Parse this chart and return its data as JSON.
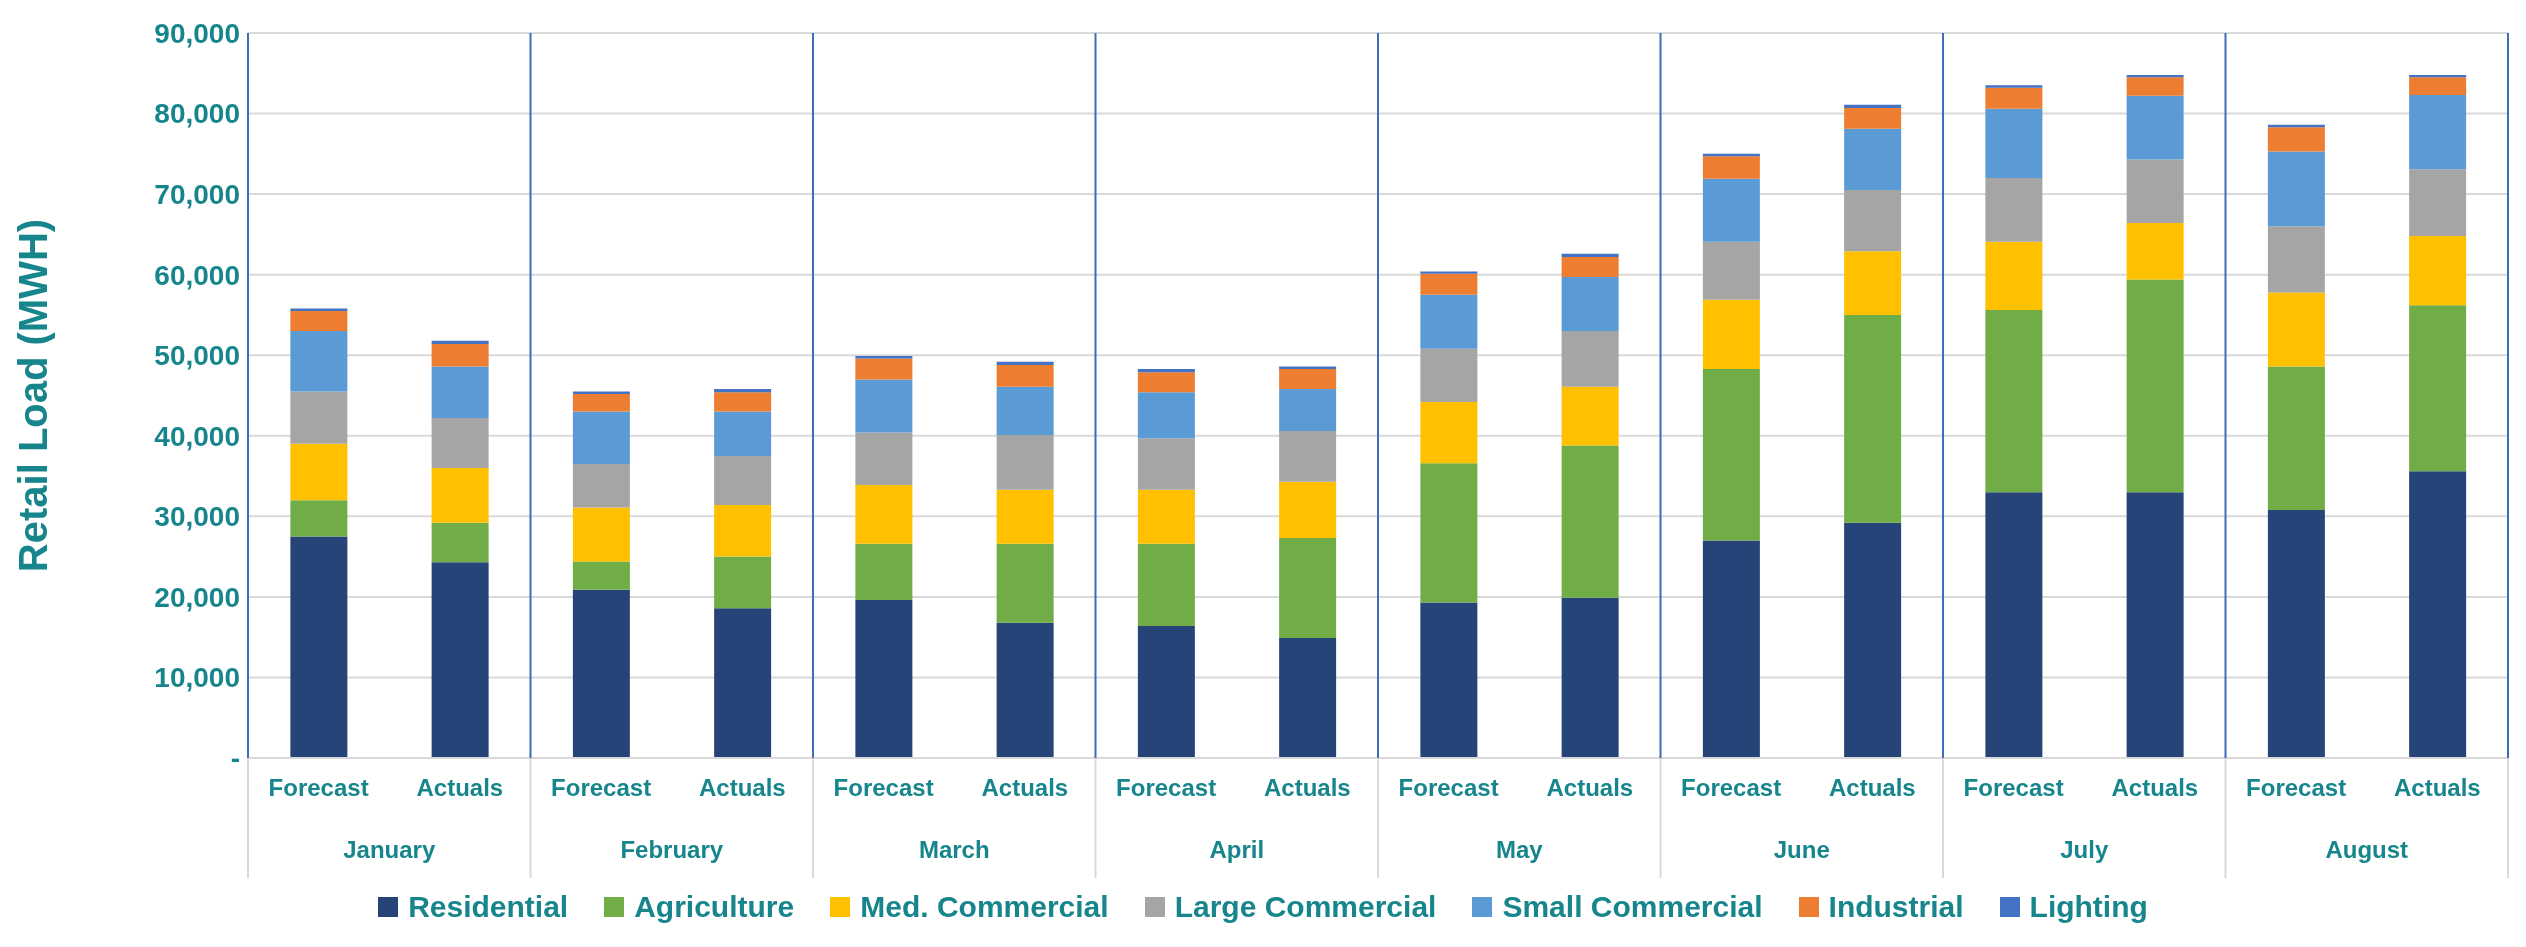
{
  "chart_data": {
    "type": "bar",
    "stacked": true,
    "ylabel": "Retail Load (MWH)",
    "categories": [
      "Forecast",
      "Actuals",
      "Forecast",
      "Actuals",
      "Forecast",
      "Actuals",
      "Forecast",
      "Actuals",
      "Forecast",
      "Actuals",
      "Forecast",
      "Actuals",
      "Forecast",
      "Actuals",
      "Forecast",
      "Actuals"
    ],
    "annotations": [
      "January",
      "February",
      "March",
      "April",
      "May",
      "June",
      "July",
      "August"
    ],
    "series": [
      {
        "name": "Residential",
        "color": "#264478",
        "values": [
          27500,
          24300,
          20900,
          18600,
          19600,
          16800,
          16400,
          14900,
          19300,
          19900,
          27000,
          29200,
          33000,
          33000,
          30800,
          35600
        ]
      },
      {
        "name": "Agriculture",
        "color": "#70ad47",
        "values": [
          4500,
          4900,
          3500,
          6400,
          7000,
          9800,
          10200,
          12400,
          17300,
          18900,
          21300,
          25800,
          22600,
          26400,
          17800,
          20600
        ]
      },
      {
        "name": "Med. Commercial",
        "color": "#ffc000",
        "values": [
          7000,
          6800,
          6700,
          6400,
          7300,
          6700,
          6700,
          7000,
          7600,
          7300,
          8600,
          7900,
          8500,
          7000,
          9200,
          8600
        ]
      },
      {
        "name": "Large Commercial",
        "color": "#a5a5a5",
        "values": [
          6500,
          6200,
          5400,
          6100,
          6500,
          6800,
          6400,
          6300,
          6600,
          6900,
          7200,
          7600,
          7900,
          7900,
          8200,
          8300
        ]
      },
      {
        "name": "Small Commercial",
        "color": "#5b9bd5",
        "values": [
          7500,
          6400,
          6500,
          5500,
          6600,
          6000,
          5700,
          5200,
          6700,
          6700,
          7800,
          7600,
          8600,
          7900,
          9300,
          9200
        ]
      },
      {
        "name": "Industrial",
        "color": "#ed7d31",
        "values": [
          2500,
          2800,
          2200,
          2400,
          2600,
          2700,
          2500,
          2500,
          2600,
          2500,
          2800,
          2600,
          2600,
          2300,
          3000,
          2200
        ]
      },
      {
        "name": "Lighting",
        "color": "#4472c4",
        "values": [
          300,
          400,
          300,
          400,
          300,
          400,
          400,
          300,
          300,
          400,
          300,
          400,
          300,
          300,
          300,
          300
        ]
      }
    ],
    "ylim": [
      0,
      90000
    ],
    "yticks": [
      {
        "value": 0,
        "label": "-"
      },
      {
        "value": 10000,
        "label": "10,000"
      },
      {
        "value": 20000,
        "label": "20,000"
      },
      {
        "value": 30000,
        "label": "30,000"
      },
      {
        "value": 40000,
        "label": "40,000"
      },
      {
        "value": 50000,
        "label": "50,000"
      },
      {
        "value": 60000,
        "label": "60,000"
      },
      {
        "value": 70000,
        "label": "70,000"
      },
      {
        "value": 80000,
        "label": "80,000"
      },
      {
        "value": 90000,
        "label": "90,000"
      }
    ],
    "grid": "y",
    "legend": "bottom"
  }
}
